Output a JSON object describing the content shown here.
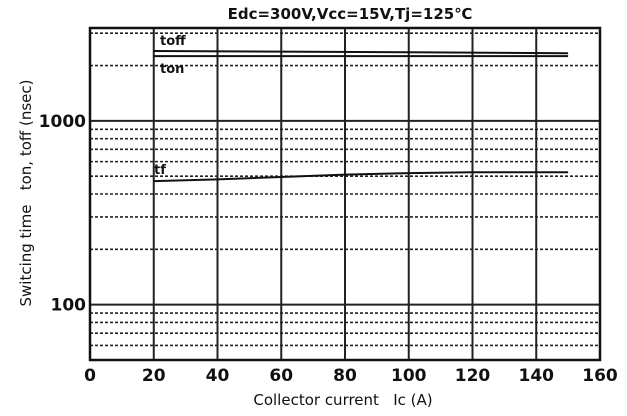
{
  "chart_data": {
    "type": "line",
    "title": "Edc=300V,Vcc=15V,Tj=125℃",
    "xlabel": "Collector current   Ic (A)",
    "ylabel": "Switcing time   ton, toff (nsec)",
    "xlim": [
      0,
      160
    ],
    "ylim": [
      50,
      3200
    ],
    "yscale": "log",
    "x_ticks": [
      0,
      20,
      40,
      60,
      80,
      100,
      120,
      140,
      160
    ],
    "x_tick_labels": [
      "0",
      "20",
      "40",
      "60",
      "80",
      "100",
      "120",
      "140",
      "160"
    ],
    "y_tick_labels": [
      {
        "value": 100,
        "label": "100"
      },
      {
        "value": 1000,
        "label": "1000"
      }
    ],
    "grid": true,
    "series": [
      {
        "name": "toff",
        "x": [
          20,
          60,
          100,
          150
        ],
        "y": [
          2400,
          2380,
          2360,
          2330
        ]
      },
      {
        "name": "ton",
        "x": [
          20,
          60,
          100,
          150
        ],
        "y": [
          2250,
          2250,
          2250,
          2250
        ]
      },
      {
        "name": "tf",
        "x": [
          20,
          40,
          60,
          80,
          100,
          120,
          150
        ],
        "y": [
          470,
          480,
          495,
          510,
          520,
          525,
          525
        ]
      }
    ]
  },
  "colors": {
    "line": "#111111",
    "grid": "#222222",
    "background": "#ffffff"
  }
}
